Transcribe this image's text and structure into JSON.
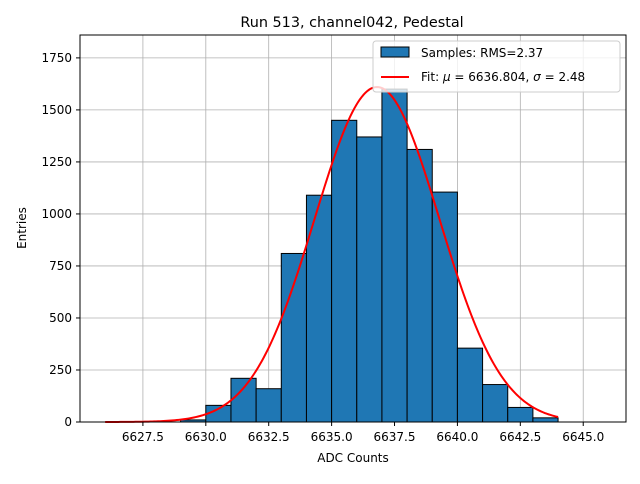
{
  "chart_data": {
    "type": "bar",
    "title": "Run 513, channel042, Pedestal",
    "xlabel": "ADC Counts",
    "ylabel": "Entries",
    "xlim": [
      6625.0,
      6646.7
    ],
    "ylim": [
      0,
      1860
    ],
    "xticks": [
      6627.5,
      6630.0,
      6632.5,
      6635.0,
      6637.5,
      6640.0,
      6642.5,
      6645.0
    ],
    "xtick_labels": [
      "6627.5",
      "6630.0",
      "6632.5",
      "6635.0",
      "6637.5",
      "6640.0",
      "6642.5",
      "6645.0"
    ],
    "yticks": [
      0,
      250,
      500,
      750,
      1000,
      1250,
      1500,
      1750
    ],
    "ytick_labels": [
      "0",
      "250",
      "500",
      "750",
      "1000",
      "1250",
      "1500",
      "1750"
    ],
    "grid": true,
    "legend_position": "top-right",
    "histogram": {
      "name": "Samples: RMS=2.37",
      "color": "#1f77b4",
      "edge_color": "#000000",
      "bin_edges": [
        6626,
        6627,
        6628,
        6629,
        6630,
        6631,
        6632,
        6633,
        6634,
        6635,
        6636,
        6637,
        6638,
        6639,
        6640,
        6641,
        6642,
        6643,
        6644
      ],
      "counts": [
        0,
        0,
        0,
        10,
        80,
        210,
        160,
        810,
        1090,
        1450,
        1370,
        1600,
        1310,
        1105,
        355,
        180,
        70,
        20
      ]
    },
    "fit": {
      "name_prefix": "Fit: ",
      "mu_symbol": "μ",
      "mu_value": " = 6636.804, ",
      "sigma_symbol": "σ",
      "sigma_value": " = 2.48",
      "color": "#ff0000",
      "mu": 6636.804,
      "sigma": 2.48,
      "amplitude": 1610,
      "x_range": [
        6626,
        6644
      ]
    }
  }
}
